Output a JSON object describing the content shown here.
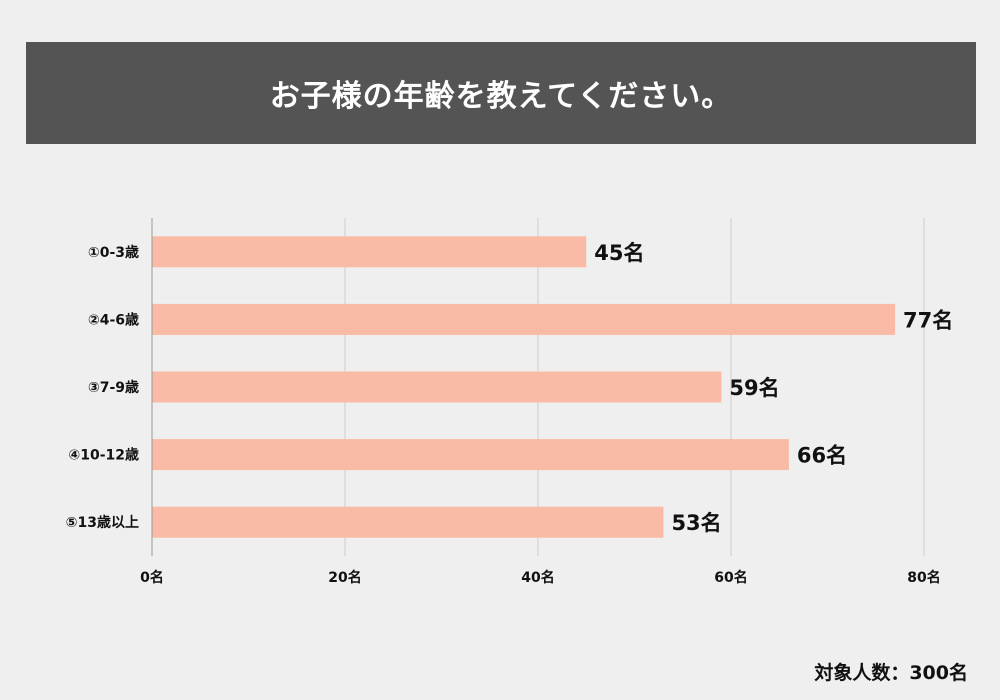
{
  "title": "お子様の年齢を教えてください。",
  "footnote": "対象人数：300名",
  "chart_data": {
    "type": "bar",
    "orientation": "horizontal",
    "categories": [
      "①0-3歳",
      "②4-6歳",
      "③7-9歳",
      "④10-12歳",
      "⑤13歳以上"
    ],
    "values": [
      45,
      77,
      59,
      66,
      53
    ],
    "data_labels": [
      "45名",
      "77名",
      "59名",
      "66名",
      "53名"
    ],
    "xlim": [
      0,
      80
    ],
    "ticks": [
      0,
      20,
      40,
      60,
      80
    ],
    "tick_labels": [
      "0名",
      "20名",
      "40名",
      "60名",
      "80名"
    ],
    "grid": true,
    "colors": {
      "bar": "#f9bba5",
      "grid": "#cccccc",
      "header_bg": "#545454",
      "background": "#efefef"
    }
  }
}
